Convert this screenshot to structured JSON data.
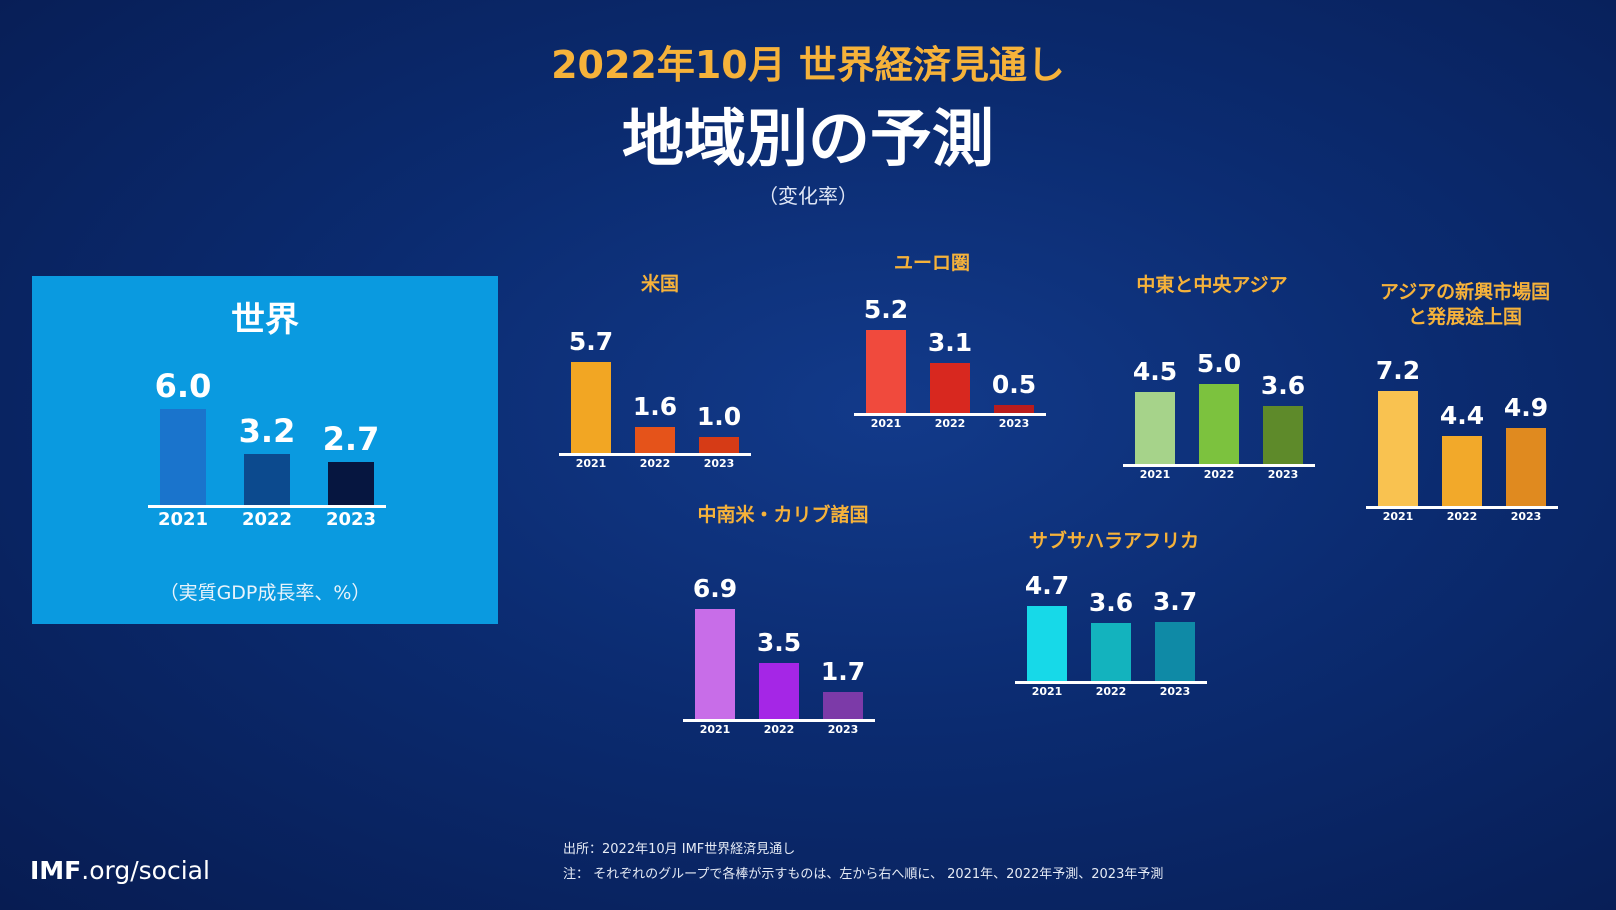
{
  "header": {
    "title_top": "2022年10月 世界経済見通し",
    "title_main": "地域別の予測",
    "subtitle": "（変化率）"
  },
  "chart_data": [
    {
      "type": "bar",
      "title": "世界",
      "note": "（実質GDP成長率、%）",
      "categories": [
        "2021",
        "2022",
        "2023"
      ],
      "values": [
        6.0,
        3.2,
        2.7
      ],
      "colors": [
        "#1a74cc",
        "#0c4a8e",
        "#061640"
      ]
    },
    {
      "type": "bar",
      "title": "米国",
      "categories": [
        "2021",
        "2022",
        "2023"
      ],
      "values": [
        5.7,
        1.6,
        1.0
      ],
      "colors": [
        "#f2a623",
        "#e5531a",
        "#d63b16"
      ]
    },
    {
      "type": "bar",
      "title": "ユーロ圏",
      "categories": [
        "2021",
        "2022",
        "2023"
      ],
      "values": [
        5.2,
        3.1,
        0.5
      ],
      "colors": [
        "#f04a3d",
        "#d8281f",
        "#b91c1c"
      ]
    },
    {
      "type": "bar",
      "title": "中東と中央アジア",
      "categories": [
        "2021",
        "2022",
        "2023"
      ],
      "values": [
        4.5,
        5.0,
        3.6
      ],
      "colors": [
        "#a6d38a",
        "#7cc23e",
        "#5e8a2a"
      ]
    },
    {
      "type": "bar",
      "title": "アジアの新興市場国\nと発展途上国",
      "categories": [
        "2021",
        "2022",
        "2023"
      ],
      "values": [
        7.2,
        4.4,
        4.9
      ],
      "colors": [
        "#f9c250",
        "#f2a92a",
        "#e08a1f"
      ]
    },
    {
      "type": "bar",
      "title": "中南米・カリブ諸国",
      "categories": [
        "2021",
        "2022",
        "2023"
      ],
      "values": [
        6.9,
        3.5,
        1.7
      ],
      "colors": [
        "#c86de8",
        "#a526e6",
        "#7c3aa8"
      ]
    },
    {
      "type": "bar",
      "title": "サブサハラアフリカ",
      "categories": [
        "2021",
        "2022",
        "2023"
      ],
      "values": [
        4.7,
        3.6,
        3.7
      ],
      "colors": [
        "#17d9e8",
        "#13b3be",
        "#0f8aa6"
      ]
    }
  ],
  "footer": {
    "logo_bold": "IMF",
    "logo_rest": ".org/social",
    "source": "出所：2022年10月 IMF世界経済見通し",
    "note": "注： それぞれのグループで各棒が示すものは、左から右へ順に、 2021年、2022年予測、2023年予測"
  }
}
